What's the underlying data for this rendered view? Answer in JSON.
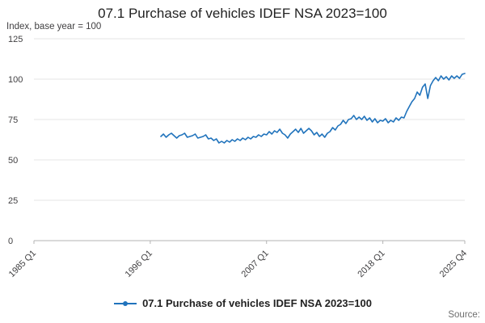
{
  "title": "07.1 Purchase of vehicles IDEF NSA 2023=100",
  "subtitle": "Index, base year = 100",
  "legend": {
    "label": "07.1 Purchase of vehicles IDEF NSA 2023=100"
  },
  "source_label": "Source:",
  "colors": {
    "line": "#2073bc",
    "grid": "#e6e6e6",
    "axis": "#b3b3b3",
    "text": "#414042"
  },
  "chart_data": {
    "type": "line",
    "title": "07.1 Purchase of vehicles IDEF NSA 2023=100",
    "xlabel": "",
    "ylabel": "Index, base year = 100",
    "ylim": [
      0,
      125
    ],
    "y_ticks": [
      0,
      25,
      50,
      75,
      100,
      125
    ],
    "x_ticks": [
      "1985 Q1",
      "1996 Q1",
      "2007 Q1",
      "2018 Q1",
      "2025 Q4"
    ],
    "x_domain": [
      "1985 Q1",
      "2025 Q4"
    ],
    "grid": "horizontal",
    "legend_position": "bottom",
    "series": [
      {
        "name": "07.1 Purchase of vehicles IDEF NSA 2023=100",
        "start": "1997 Q1",
        "frequency": "quarterly",
        "values": [
          64.5,
          66,
          64,
          65.5,
          66.5,
          65,
          63.5,
          65,
          65.5,
          66.5,
          64,
          64.5,
          65,
          66,
          63.5,
          64,
          64.5,
          65.5,
          63,
          63.5,
          62,
          63,
          60.5,
          61.5,
          60.5,
          62,
          61,
          62.5,
          61.5,
          63,
          62,
          63.5,
          62.5,
          64,
          63,
          64.5,
          64,
          65.5,
          64.5,
          66,
          65.5,
          67.5,
          66,
          68,
          67,
          69,
          66.5,
          65.5,
          63.5,
          66,
          67.5,
          69,
          67,
          69.5,
          66.5,
          68,
          69.5,
          68,
          65.5,
          67,
          64.5,
          66,
          64,
          66.5,
          67.5,
          70,
          68.5,
          71,
          72,
          74.5,
          72.5,
          75,
          75.5,
          77.5,
          75,
          76.5,
          75,
          77,
          74.5,
          76,
          73.5,
          75.5,
          73,
          74.5,
          74,
          75.5,
          73,
          74.5,
          73.5,
          76,
          74.5,
          76.5,
          76,
          80,
          83,
          86,
          88,
          92,
          90,
          95,
          97,
          88,
          96,
          99,
          101,
          99,
          102,
          100,
          101.5,
          99.5,
          102,
          100.5,
          102,
          100.5,
          103,
          103.5
        ]
      }
    ]
  }
}
